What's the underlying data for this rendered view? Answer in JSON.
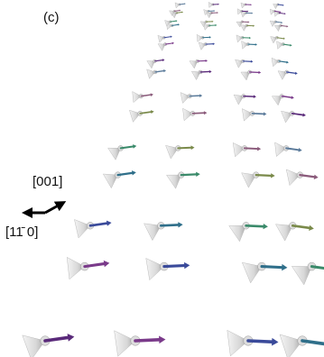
{
  "panel_label": "(c)",
  "axes": {
    "vertical": "[001]",
    "horizontal": "[11̄ 0]"
  }
}
